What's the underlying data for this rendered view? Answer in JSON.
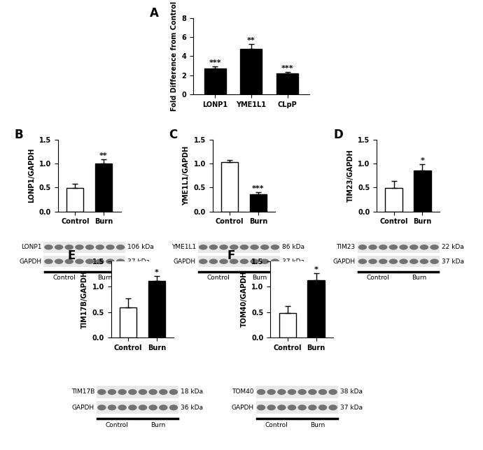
{
  "chart_data": [
    {
      "type": "bar",
      "panel": "A",
      "categories": [
        "LONP1",
        "YME1L1",
        "CLpP"
      ],
      "values": [
        2.7,
        4.75,
        2.2
      ],
      "errors": [
        0.25,
        0.55,
        0.15
      ],
      "significance": [
        "***",
        "**",
        "***"
      ],
      "color": "#000000",
      "y_label": "Fold Difference from Control",
      "ylim": [
        0,
        8
      ],
      "yticks": [
        0,
        2,
        4,
        6,
        8
      ]
    },
    {
      "type": "bar",
      "panel": "B",
      "categories": [
        "Control",
        "Burn"
      ],
      "values": [
        0.49,
        1.0
      ],
      "errors": [
        0.09,
        0.09
      ],
      "significance": [
        null,
        "**"
      ],
      "colors": [
        "#ffffff",
        "#000000"
      ],
      "y_label": "LONP1/GAPDH",
      "ylim": [
        0.0,
        1.5
      ],
      "yticks": [
        0.0,
        0.5,
        1.0,
        1.5
      ],
      "blot": {
        "rows": [
          {
            "label": "LONP1",
            "kda": "106 kDa"
          },
          {
            "label": "GAPDH",
            "kda": "37 kDa"
          }
        ],
        "groups": [
          "Control",
          "Burn"
        ]
      }
    },
    {
      "type": "bar",
      "panel": "C",
      "categories": [
        "Control",
        "Burn"
      ],
      "values": [
        1.03,
        0.36
      ],
      "errors": [
        0.04,
        0.04
      ],
      "significance": [
        null,
        "***"
      ],
      "colors": [
        "#ffffff",
        "#000000"
      ],
      "y_label": "YME1L1/GAPDH",
      "ylim": [
        0.0,
        1.5
      ],
      "yticks": [
        0.0,
        0.5,
        1.0,
        1.5
      ],
      "blot": {
        "rows": [
          {
            "label": "YME1L1",
            "kda": "86 kDa"
          },
          {
            "label": "GAPDH",
            "kda": "37 kDa"
          }
        ],
        "groups": [
          "Control",
          "Burn"
        ]
      }
    },
    {
      "type": "bar",
      "panel": "D",
      "categories": [
        "Control",
        "Burn"
      ],
      "values": [
        0.49,
        0.85
      ],
      "errors": [
        0.15,
        0.14
      ],
      "significance": [
        null,
        "*"
      ],
      "colors": [
        "#ffffff",
        "#000000"
      ],
      "y_label": "TIM23/GAPDH",
      "ylim": [
        0.0,
        1.5
      ],
      "yticks": [
        0.0,
        0.5,
        1.0,
        1.5
      ],
      "blot": {
        "rows": [
          {
            "label": "TIM23",
            "kda": "22 kDa"
          },
          {
            "label": "GAPDH",
            "kda": "37 kDa"
          }
        ],
        "groups": [
          "Control",
          "Burn"
        ]
      }
    },
    {
      "type": "bar",
      "panel": "E",
      "categories": [
        "Control",
        "Burn"
      ],
      "values": [
        0.59,
        1.11
      ],
      "errors": [
        0.18,
        0.1
      ],
      "significance": [
        null,
        "*"
      ],
      "colors": [
        "#ffffff",
        "#000000"
      ],
      "y_label": "TIM17B/GAPDH",
      "ylim": [
        0.0,
        1.5
      ],
      "yticks": [
        0.0,
        0.5,
        1.0,
        1.5
      ],
      "blot": {
        "rows": [
          {
            "label": "TIM17B",
            "kda": "18 kDa"
          },
          {
            "label": "GAPDH",
            "kda": "36 kDa"
          }
        ],
        "groups": [
          "Control",
          "Burn"
        ]
      }
    },
    {
      "type": "bar",
      "panel": "F",
      "categories": [
        "Control",
        "Burn"
      ],
      "values": [
        0.48,
        1.12
      ],
      "errors": [
        0.13,
        0.14
      ],
      "significance": [
        null,
        "*"
      ],
      "colors": [
        "#ffffff",
        "#000000"
      ],
      "y_label": "TOM40/GAPDH",
      "ylim": [
        0.0,
        1.5
      ],
      "yticks": [
        0.0,
        0.5,
        1.0,
        1.5
      ],
      "blot": {
        "rows": [
          {
            "label": "TOM40",
            "kda": "38 kDa"
          },
          {
            "label": "GAPDH",
            "kda": "37 kDa"
          }
        ],
        "groups": [
          "Control",
          "Burn"
        ]
      }
    }
  ]
}
